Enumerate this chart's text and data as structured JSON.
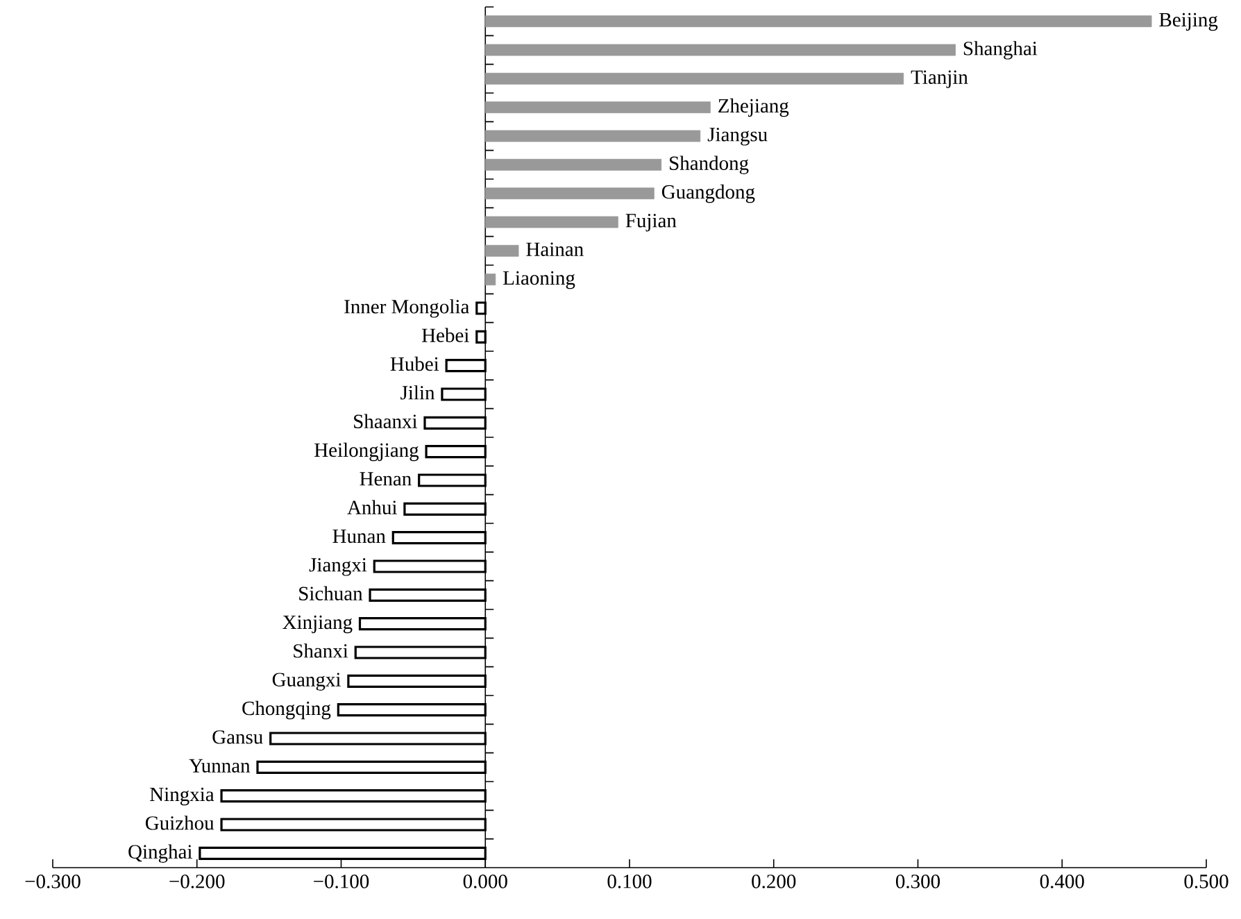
{
  "chart_data": {
    "type": "bar",
    "orientation": "horizontal",
    "categories": [
      "Beijing",
      "Shanghai",
      "Tianjin",
      "Zhejiang",
      "Jiangsu",
      "Shandong",
      "Guangdong",
      "Fujian",
      "Hainan",
      "Liaoning",
      "Inner Mongolia",
      "Hebei",
      "Hubei",
      "Jilin",
      "Shaanxi",
      "Heilongjiang",
      "Henan",
      "Anhui",
      "Hunan",
      "Jiangxi",
      "Sichuan",
      "Xinjiang",
      "Shanxi",
      "Guangxi",
      "Chongqing",
      "Gansu",
      "Yunnan",
      "Ningxia",
      "Guizhou",
      "Qinghai"
    ],
    "values": [
      0.462,
      0.326,
      0.29,
      0.156,
      0.149,
      0.122,
      0.117,
      0.092,
      0.023,
      0.007,
      -0.006,
      -0.006,
      -0.027,
      -0.03,
      -0.042,
      -0.041,
      -0.046,
      -0.056,
      -0.064,
      -0.077,
      -0.08,
      -0.087,
      -0.09,
      -0.095,
      -0.102,
      -0.149,
      -0.158,
      -0.183,
      -0.183,
      -0.198
    ],
    "colors": [
      "#999999",
      "#999999",
      "#999999",
      "#999999",
      "#999999",
      "#999999",
      "#999999",
      "#999999",
      "#999999",
      "#999999",
      "#ffffff",
      "#ffffff",
      "#ffffff",
      "#ffffff",
      "#ffffff",
      "#ffffff",
      "#ffffff",
      "#ffffff",
      "#ffffff",
      "#ffffff",
      "#ffffff",
      "#ffffff",
      "#ffffff",
      "#ffffff",
      "#ffffff",
      "#ffffff",
      "#ffffff",
      "#ffffff",
      "#ffffff",
      "#ffffff"
    ],
    "xlim": [
      -0.3,
      0.5
    ],
    "xticks": [
      {
        "value": -0.3,
        "label": "−0.300"
      },
      {
        "value": -0.2,
        "label": "−0.200"
      },
      {
        "value": -0.1,
        "label": "−0.100"
      },
      {
        "value": 0,
        "label": "0.000"
      },
      {
        "value": 0.1,
        "label": "0.100"
      },
      {
        "value": 0.2,
        "label": "0.200"
      },
      {
        "value": 0.3,
        "label": "0.300"
      },
      {
        "value": 0.4,
        "label": "0.400"
      },
      {
        "value": 0.5,
        "label": "0.500"
      }
    ]
  }
}
